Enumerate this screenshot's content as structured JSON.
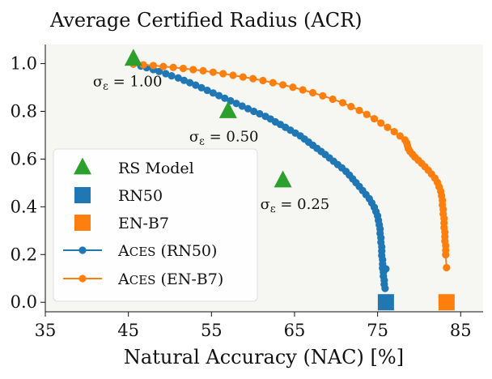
{
  "chart_data": {
    "type": "line",
    "title": "Average Certified Radius (ACR)",
    "xlabel": "Natural Accuracy (NAC) [%]",
    "ylabel": "",
    "xlim": [
      35,
      87.7
    ],
    "ylim": [
      -0.04,
      1.08
    ],
    "xticks": [
      35,
      45,
      55,
      65,
      75,
      85
    ],
    "yticks": [
      0.0,
      0.2,
      0.4,
      0.6,
      0.8,
      1.0
    ],
    "ytick_labels": [
      "0.0",
      "0.2",
      "0.4",
      "0.6",
      "0.8",
      "1.0"
    ],
    "grid": false,
    "legend_position": "lower-left",
    "colors": {
      "rs_model": "#2ca02c",
      "rn50": "#1f77b4",
      "enb7": "#ff7f0e",
      "plot_bg": "#f6f6f3"
    },
    "rs_model_points": [
      {
        "x": 45.6,
        "y": 1.02,
        "label": "σ_ε = 1.00"
      },
      {
        "x": 57.0,
        "y": 0.8,
        "label": "σ_ε = 0.50"
      },
      {
        "x": 63.6,
        "y": 0.51,
        "label": "σ_ε = 0.25"
      }
    ],
    "rn50_point": {
      "x": 76.0,
      "y": 0.0
    },
    "enb7_point": {
      "x": 83.3,
      "y": 0.0
    },
    "series": [
      {
        "name": "Aces (RN50)",
        "x": [
          45.6,
          46.5,
          47.2,
          48.0,
          48.7,
          49.5,
          50.2,
          51.0,
          51.7,
          52.4,
          53.1,
          53.8,
          54.5,
          55.2,
          55.9,
          56.6,
          57.3,
          58.0,
          58.7,
          59.4,
          60.1,
          60.8,
          61.5,
          62.1,
          62.7,
          63.3,
          63.9,
          64.5,
          65.1,
          65.7,
          66.2,
          66.7,
          67.2,
          67.7,
          68.2,
          68.7,
          69.2,
          69.7,
          70.2,
          70.7,
          71.2,
          71.6,
          72.0,
          72.4,
          72.8,
          73.2,
          73.6,
          74.0,
          74.3,
          74.6,
          74.8,
          75.0,
          75.1,
          75.2,
          75.3,
          75.3,
          75.4,
          75.4,
          75.5,
          75.5,
          75.5,
          75.6,
          75.6,
          75.6,
          75.7,
          75.7,
          75.8,
          75.8,
          75.9,
          76.0
        ],
        "y": [
          0.998,
          0.99,
          0.983,
          0.975,
          0.967,
          0.958,
          0.949,
          0.94,
          0.93,
          0.92,
          0.91,
          0.899,
          0.888,
          0.877,
          0.866,
          0.855,
          0.844,
          0.833,
          0.822,
          0.811,
          0.8,
          0.79,
          0.779,
          0.768,
          0.756,
          0.745,
          0.733,
          0.721,
          0.709,
          0.697,
          0.684,
          0.671,
          0.658,
          0.645,
          0.632,
          0.619,
          0.605,
          0.591,
          0.577,
          0.563,
          0.548,
          0.533,
          0.517,
          0.501,
          0.485,
          0.468,
          0.451,
          0.434,
          0.416,
          0.398,
          0.38,
          0.362,
          0.343,
          0.325,
          0.307,
          0.289,
          0.27,
          0.251,
          0.232,
          0.214,
          0.196,
          0.178,
          0.16,
          0.143,
          0.126,
          0.109,
          0.092,
          0.075,
          0.058,
          0.14
        ]
      },
      {
        "name": "Aces (EN-B7)",
        "x": [
          45.6,
          46.8,
          48.0,
          49.2,
          50.4,
          51.6,
          52.8,
          54.0,
          55.2,
          56.4,
          57.6,
          58.8,
          60.0,
          61.2,
          62.4,
          63.6,
          64.8,
          66.0,
          67.2,
          68.4,
          69.6,
          70.8,
          71.8,
          72.8,
          73.7,
          74.6,
          75.4,
          76.2,
          77.0,
          77.7,
          78.3,
          78.5,
          78.6,
          78.7,
          78.9,
          79.2,
          79.5,
          79.9,
          80.3,
          80.7,
          81.1,
          81.5,
          81.9,
          82.2,
          82.4,
          82.6,
          82.7,
          82.8,
          82.8,
          82.9,
          82.9,
          83.0,
          83.0,
          83.0,
          83.1,
          83.1,
          83.1,
          83.2,
          83.2,
          83.2,
          83.3
        ],
        "y": [
          0.998,
          0.995,
          0.992,
          0.988,
          0.984,
          0.98,
          0.975,
          0.97,
          0.964,
          0.958,
          0.951,
          0.944,
          0.937,
          0.929,
          0.92,
          0.911,
          0.901,
          0.89,
          0.878,
          0.865,
          0.851,
          0.836,
          0.82,
          0.804,
          0.787,
          0.769,
          0.751,
          0.733,
          0.715,
          0.697,
          0.68,
          0.668,
          0.656,
          0.644,
          0.632,
          0.62,
          0.608,
          0.595,
          0.582,
          0.568,
          0.553,
          0.537,
          0.52,
          0.502,
          0.484,
          0.465,
          0.446,
          0.427,
          0.408,
          0.389,
          0.37,
          0.351,
          0.332,
          0.313,
          0.294,
          0.275,
          0.256,
          0.237,
          0.218,
          0.199,
          0.145
        ]
      }
    ],
    "legend": [
      {
        "label": "RS Model",
        "marker": "triangle",
        "color_key": "rs_model"
      },
      {
        "label": "RN50",
        "marker": "square",
        "color_key": "rn50"
      },
      {
        "label": "EN-B7",
        "marker": "square",
        "color_key": "enb7"
      },
      {
        "label": "Aces (RN50)",
        "marker": "line-dot",
        "color_key": "rn50"
      },
      {
        "label": "Aces (EN-B7)",
        "marker": "line-dot",
        "color_key": "enb7"
      }
    ]
  }
}
